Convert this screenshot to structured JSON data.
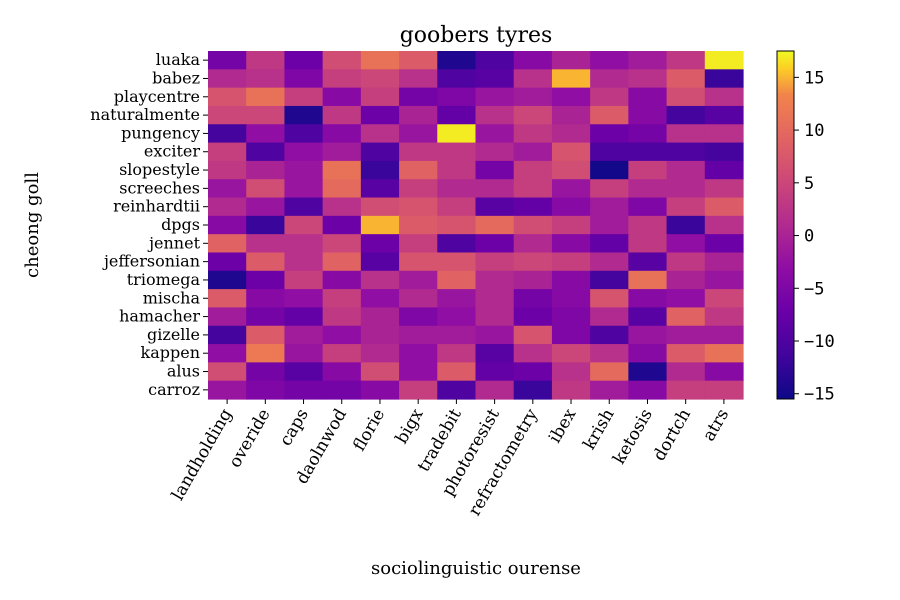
{
  "chart_data": {
    "type": "heatmap",
    "title": "goobers tyres",
    "xlabel": "sociolinguistic ourense",
    "ylabel": "cheong goll",
    "colormap": "plasma",
    "color_range": [
      -15.5,
      17.5
    ],
    "colorbar_ticks": [
      -15,
      -10,
      -5,
      0,
      5,
      10,
      15
    ],
    "x_categories": [
      "landholding",
      "overide",
      "caps",
      "daolnwod",
      "florie",
      "bigx",
      "tradebit",
      "photoresist",
      "refractometry",
      "ibex",
      "krish",
      "ketosis",
      "dortch",
      "atrs"
    ],
    "y_categories": [
      "luaka",
      "babez",
      "playcentre",
      "naturalmente",
      "pungency",
      "exciter",
      "slopestyle",
      "screeches",
      "reinhardtii",
      "dpgs",
      "jennet",
      "jeffersonian",
      "triomega",
      "mischa",
      "hamacher",
      "gizelle",
      "kappen",
      "alus",
      "carroz"
    ],
    "values": [
      [
        -6,
        3,
        -7,
        6,
        11,
        8,
        -14,
        -10,
        -4,
        0,
        -3,
        -1,
        3,
        17
      ],
      [
        1,
        2,
        -5,
        4,
        5,
        2,
        -10,
        -9,
        2,
        15,
        1,
        2,
        8,
        -12
      ],
      [
        7,
        11,
        4,
        -4,
        4,
        -6,
        -5,
        -2,
        -1,
        -3,
        3,
        -4,
        6,
        2
      ],
      [
        5,
        5,
        -14,
        3,
        -7,
        0,
        -8,
        2,
        5,
        0,
        8,
        -4,
        -11,
        -9
      ],
      [
        -11,
        -3,
        -10,
        -4,
        2,
        -2,
        17,
        -2,
        3,
        1,
        -7,
        -6,
        2,
        2
      ],
      [
        4,
        -10,
        -3,
        -1,
        -10,
        3,
        3,
        1,
        -1,
        7,
        -10,
        -10,
        -10,
        -11
      ],
      [
        3,
        0,
        -2,
        11,
        -12,
        9,
        3,
        -6,
        4,
        6,
        -15,
        4,
        1,
        -8
      ],
      [
        -2,
        6,
        -2,
        10,
        -9,
        4,
        1,
        1,
        4,
        -2,
        4,
        1,
        1,
        3
      ],
      [
        1,
        -2,
        -10,
        2,
        6,
        7,
        4,
        -9,
        -8,
        -4,
        -1,
        -5,
        4,
        8
      ],
      [
        -4,
        -12,
        5,
        -7,
        15,
        8,
        7,
        10,
        6,
        4,
        -1,
        3,
        -12,
        2
      ],
      [
        9,
        2,
        2,
        5,
        -7,
        4,
        -10,
        -7,
        1,
        -4,
        -8,
        3,
        -3,
        -7
      ],
      [
        -7,
        8,
        2,
        9,
        -9,
        7,
        7,
        4,
        5,
        4,
        1,
        -9,
        3,
        0
      ],
      [
        -14,
        -7,
        4,
        -4,
        2,
        -1,
        9,
        1,
        0,
        -4,
        -11,
        11,
        0,
        -2
      ],
      [
        8,
        -4,
        -3,
        4,
        -3,
        1,
        -2,
        1,
        -6,
        -4,
        7,
        -4,
        -3,
        5
      ],
      [
        -1,
        -6,
        -8,
        3,
        0,
        -5,
        -3,
        1,
        -7,
        -5,
        1,
        -9,
        9,
        3
      ],
      [
        -11,
        8,
        -1,
        -3,
        0,
        -1,
        -1,
        -2,
        7,
        -5,
        -10,
        -2,
        -1,
        -1
      ],
      [
        -3,
        12,
        -2,
        4,
        1,
        -3,
        3,
        -9,
        2,
        5,
        2,
        -4,
        8,
        11
      ],
      [
        6,
        -6,
        -9,
        -4,
        6,
        -3,
        8,
        -8,
        -7,
        2,
        10,
        -14,
        1,
        -4
      ],
      [
        -2,
        -5,
        -6,
        -6,
        -4,
        4,
        -10,
        1,
        -12,
        3,
        -1,
        -4,
        4,
        4
      ]
    ]
  }
}
